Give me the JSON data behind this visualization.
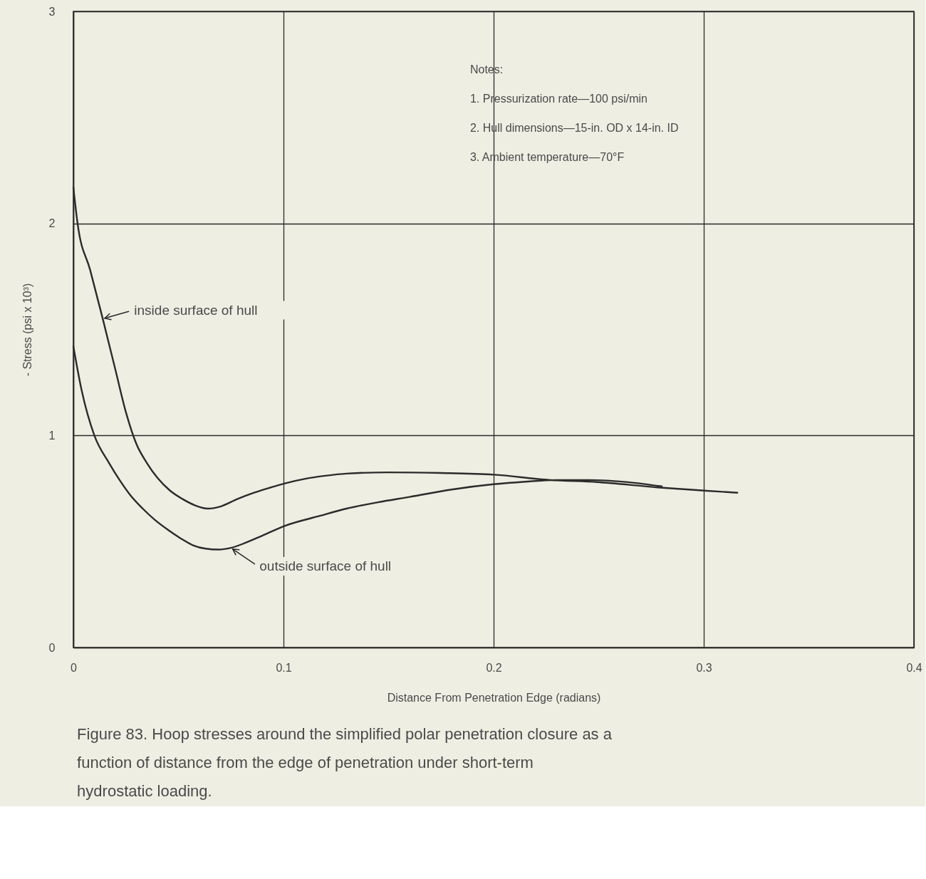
{
  "chart_data": {
    "type": "line",
    "title": "Figure 83. Hoop stresses around the simplified polar penetration closure as a function of distance from the edge of penetration under short-term hydrostatic loading.",
    "xlabel": "Distance From Penetration Edge (radians)",
    "ylabel": "- Stress (psi x 10³)",
    "annotations": [
      "Notes:",
      "1. Pressurization rate—100 psi/min",
      "2. Hull dimensions—15-in. OD x 14-in. ID",
      "3. Ambient temperature—70°F"
    ],
    "xlim": [
      0,
      0.4
    ],
    "ylim": [
      0,
      3
    ],
    "xticks": [
      0,
      0.1,
      0.2,
      0.3,
      0.4
    ],
    "yticks": [
      0,
      1,
      2,
      3
    ],
    "grid": true,
    "series": [
      {
        "name": "inside surface of hull",
        "color": "#2b2b2b",
        "x": [
          0,
          0.002,
          0.008,
          0.014,
          0.02,
          0.025,
          0.03,
          0.035,
          0.04,
          0.046,
          0.052,
          0.058,
          0.064,
          0.07,
          0.078,
          0.086,
          0.094,
          0.101,
          0.11,
          0.12,
          0.13,
          0.15,
          0.175,
          0.2,
          0.227,
          0.249,
          0.278,
          0.3,
          0.316
        ],
        "values": [
          2.17,
          2.0,
          1.78,
          1.55,
          1.31,
          1.11,
          0.96,
          0.87,
          0.8,
          0.74,
          0.7,
          0.67,
          0.655,
          0.665,
          0.7,
          0.73,
          0.755,
          0.775,
          0.795,
          0.81,
          0.82,
          0.826,
          0.823,
          0.815,
          0.79,
          0.78,
          0.755,
          0.74,
          0.73
        ]
      },
      {
        "name": "outside surface of hull",
        "color": "#2b2b2b",
        "x": [
          0,
          0.004,
          0.01,
          0.017,
          0.022,
          0.027,
          0.033,
          0.039,
          0.045,
          0.051,
          0.057,
          0.063,
          0.069,
          0.075,
          0.082,
          0.09,
          0.101,
          0.117,
          0.13,
          0.145,
          0.16,
          0.18,
          0.2,
          0.215,
          0.23,
          0.245,
          0.264,
          0.28
        ],
        "values": [
          1.42,
          1.21,
          1.0,
          0.87,
          0.79,
          0.72,
          0.655,
          0.6,
          0.555,
          0.515,
          0.482,
          0.466,
          0.462,
          0.47,
          0.494,
          0.528,
          0.575,
          0.62,
          0.655,
          0.685,
          0.71,
          0.745,
          0.77,
          0.782,
          0.79,
          0.79,
          0.78,
          0.76
        ]
      }
    ]
  }
}
